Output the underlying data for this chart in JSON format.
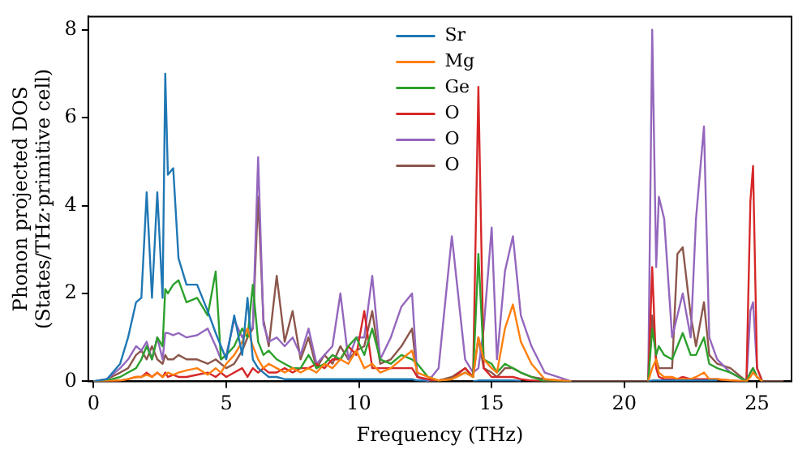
{
  "chart_data": {
    "type": "line",
    "xlabel": "Frequency (THz)",
    "ylabel": "Phonon projected DOS\n(States/THz·primitive cell)",
    "x": [
      0,
      0.5,
      1,
      1.3,
      1.6,
      1.8,
      2.0,
      2.2,
      2.4,
      2.6,
      2.7,
      2.8,
      3.0,
      3.2,
      3.5,
      3.9,
      4.3,
      4.6,
      4.8,
      5.0,
      5.3,
      5.6,
      5.8,
      6.0,
      6.2,
      6.4,
      6.6,
      6.9,
      7.2,
      7.5,
      7.8,
      8.1,
      8.4,
      8.7,
      9.0,
      9.3,
      9.6,
      9.9,
      10.2,
      10.5,
      10.8,
      11.2,
      11.6,
      12.0,
      12.2,
      12.6,
      13.0,
      13.5,
      14.0,
      14.3,
      14.5,
      14.7,
      15.0,
      15.2,
      15.5,
      15.8,
      16.1,
      16.5,
      17.0,
      18.0,
      20.0,
      20.9,
      21.05,
      21.2,
      21.3,
      21.5,
      21.8,
      22.0,
      22.2,
      22.5,
      22.7,
      23.0,
      23.2,
      23.5,
      24.0,
      24.6,
      24.75,
      24.85,
      25.0,
      25.2,
      26.0
    ],
    "series": [
      {
        "name": "Sr",
        "color": "#1f77b4",
        "values": [
          0,
          0.05,
          0.4,
          1.0,
          1.8,
          1.9,
          4.3,
          1.9,
          4.3,
          1.9,
          7.0,
          4.7,
          4.85,
          2.8,
          2.2,
          2.2,
          1.6,
          1.1,
          0.8,
          0.5,
          1.5,
          0.6,
          1.9,
          0.5,
          0.3,
          0.2,
          0.1,
          0.1,
          0.05,
          0.05,
          0.05,
          0.05,
          0.05,
          0.05,
          0.05,
          0.05,
          0.05,
          0.05,
          0.05,
          0.05,
          0.05,
          0.05,
          0.05,
          0.05,
          0.02,
          0,
          null,
          null,
          null,
          0,
          0.02,
          0.02,
          0.02,
          0.02,
          0.02,
          0.02,
          0.01,
          null,
          null,
          null,
          null,
          0,
          0.02,
          0.02,
          0.02,
          0.02,
          0.02,
          0.02,
          0.02,
          0.02,
          0.02,
          0.02,
          0.02,
          0.02,
          null,
          null,
          null,
          null,
          null,
          null,
          null
        ]
      },
      {
        "name": "Mg",
        "color": "#ff7f0e",
        "values": [
          0,
          0,
          0.02,
          0.05,
          0.1,
          0.1,
          0.15,
          0.1,
          0.2,
          0.1,
          0.15,
          0.2,
          0.15,
          0.2,
          0.25,
          0.3,
          0.15,
          0.3,
          0.2,
          0.4,
          0.6,
          0.9,
          1.2,
          0.8,
          0.5,
          0.3,
          0.4,
          0.3,
          0.2,
          0.3,
          0.2,
          0.3,
          0.2,
          0.4,
          0.3,
          0.5,
          0.4,
          0.7,
          0.3,
          0.4,
          0.2,
          0.3,
          0.5,
          0.7,
          0.2,
          0.1,
          0.02,
          0.05,
          0.2,
          0.1,
          1.0,
          0.5,
          0.3,
          0.2,
          1.2,
          1.75,
          0.9,
          0.4,
          0.05,
          0,
          null,
          0,
          0.3,
          0.5,
          0.2,
          0.1,
          0.1,
          0.05,
          0.05,
          0.05,
          0.1,
          0.2,
          0.05,
          0.05,
          0.02,
          0,
          0.1,
          0.2,
          0.1,
          0,
          null
        ]
      },
      {
        "name": "Ge",
        "color": "#2ca02c",
        "values": [
          0,
          0.02,
          0.1,
          0.2,
          0.3,
          0.5,
          0.8,
          0.5,
          1.0,
          0.8,
          2.1,
          2.0,
          2.2,
          2.3,
          1.8,
          1.9,
          1.5,
          2.5,
          0.5,
          0.6,
          0.8,
          1.2,
          1.0,
          2.2,
          0.9,
          0.6,
          0.7,
          0.5,
          0.4,
          0.3,
          0.3,
          0.6,
          0.3,
          0.4,
          0.6,
          0.5,
          0.8,
          1.0,
          0.6,
          1.2,
          0.5,
          0.4,
          0.6,
          0.5,
          0.4,
          0.1,
          0.02,
          0.05,
          0.2,
          0.1,
          2.9,
          0.5,
          0.4,
          0.2,
          0.4,
          0.3,
          0.2,
          0.1,
          0,
          0,
          null,
          0,
          1.2,
          0.6,
          0.8,
          0.6,
          0.5,
          0.8,
          1.1,
          0.6,
          0.6,
          1.0,
          0.4,
          0.3,
          0.2,
          0,
          0.2,
          0.3,
          0.1,
          0,
          null
        ]
      },
      {
        "name": "O",
        "color": "#d62728",
        "values": [
          0,
          0,
          0.02,
          0.05,
          0.1,
          0.1,
          0.2,
          0.1,
          0.2,
          0.1,
          0.2,
          0.1,
          0.15,
          0.1,
          0.1,
          0.15,
          0.2,
          0.1,
          0.2,
          0.1,
          0.2,
          0.3,
          0.1,
          0.3,
          0.2,
          0.3,
          0.2,
          0.2,
          0.3,
          0.2,
          0.3,
          0.3,
          0.4,
          0.3,
          0.5,
          0.5,
          0.8,
          0.6,
          1.6,
          0.3,
          0.3,
          0.3,
          0.3,
          0.3,
          0.1,
          0.05,
          0.02,
          0.05,
          0.3,
          0.1,
          6.7,
          0.3,
          0.1,
          0.1,
          0.1,
          0.1,
          0.05,
          0.02,
          0,
          0,
          null,
          0,
          2.6,
          0.3,
          0.1,
          0.05,
          0.05,
          0.05,
          0.1,
          0.05,
          0.05,
          0.05,
          0.05,
          0.05,
          0.02,
          0,
          4.1,
          4.9,
          0.3,
          0,
          null
        ]
      },
      {
        "name": "O",
        "color": "#9467bd",
        "values": [
          0,
          0.05,
          0.3,
          0.5,
          0.8,
          0.7,
          0.9,
          0.5,
          1.0,
          0.5,
          1.1,
          1.1,
          1.05,
          1.1,
          1.0,
          1.05,
          1.2,
          0.8,
          0.5,
          0.6,
          1.4,
          1.0,
          1.2,
          1.2,
          5.1,
          1.3,
          0.9,
          1.0,
          0.8,
          1.0,
          0.6,
          1.2,
          0.4,
          0.6,
          0.8,
          2.0,
          0.5,
          1.0,
          1.0,
          2.4,
          0.5,
          1.0,
          1.7,
          2.0,
          0.1,
          0,
          0.3,
          3.3,
          0.5,
          0.2,
          0.3,
          1.2,
          3.5,
          0.5,
          2.5,
          3.3,
          1.5,
          0.8,
          0.2,
          0,
          null,
          0,
          8.0,
          2.6,
          4.2,
          3.7,
          1.0,
          1.5,
          2.0,
          1.0,
          3.7,
          5.8,
          1.0,
          0.5,
          0.2,
          0,
          1.6,
          1.8,
          0.3,
          0,
          null
        ]
      },
      {
        "name": "O",
        "color": "#8c564b",
        "values": [
          0,
          0.05,
          0.2,
          0.3,
          0.6,
          0.7,
          0.5,
          0.8,
          0.5,
          0.4,
          0.6,
          0.5,
          0.5,
          0.6,
          0.5,
          0.5,
          0.4,
          0.5,
          0.4,
          0.3,
          0.4,
          0.7,
          1.0,
          1.2,
          4.2,
          1.4,
          0.8,
          2.4,
          0.9,
          1.6,
          0.5,
          1.0,
          0.3,
          0.6,
          0.4,
          0.8,
          0.5,
          0.7,
          0.8,
          1.6,
          0.4,
          0.5,
          0.8,
          1.2,
          0.1,
          0,
          0.02,
          0.1,
          0.3,
          0.1,
          1.0,
          0.3,
          0.2,
          0.1,
          0.3,
          0.3,
          0.2,
          0.1,
          0.05,
          0,
          0,
          0,
          1.5,
          0.5,
          0.3,
          0.3,
          0.3,
          2.9,
          3.05,
          1.5,
          0.8,
          1.8,
          0.6,
          0.4,
          0.3,
          0,
          0.2,
          0.3,
          0.1,
          0,
          0
        ]
      }
    ],
    "xlim": [
      -0.2,
      26.3
    ],
    "xticks": [
      0,
      5,
      10,
      15,
      20,
      25
    ],
    "ylim": [
      0,
      8.3
    ],
    "yticks": [
      0,
      2,
      4,
      6,
      8
    ],
    "legend": "top",
    "grid": false,
    "marker": "none",
    "line_style": "solid"
  }
}
